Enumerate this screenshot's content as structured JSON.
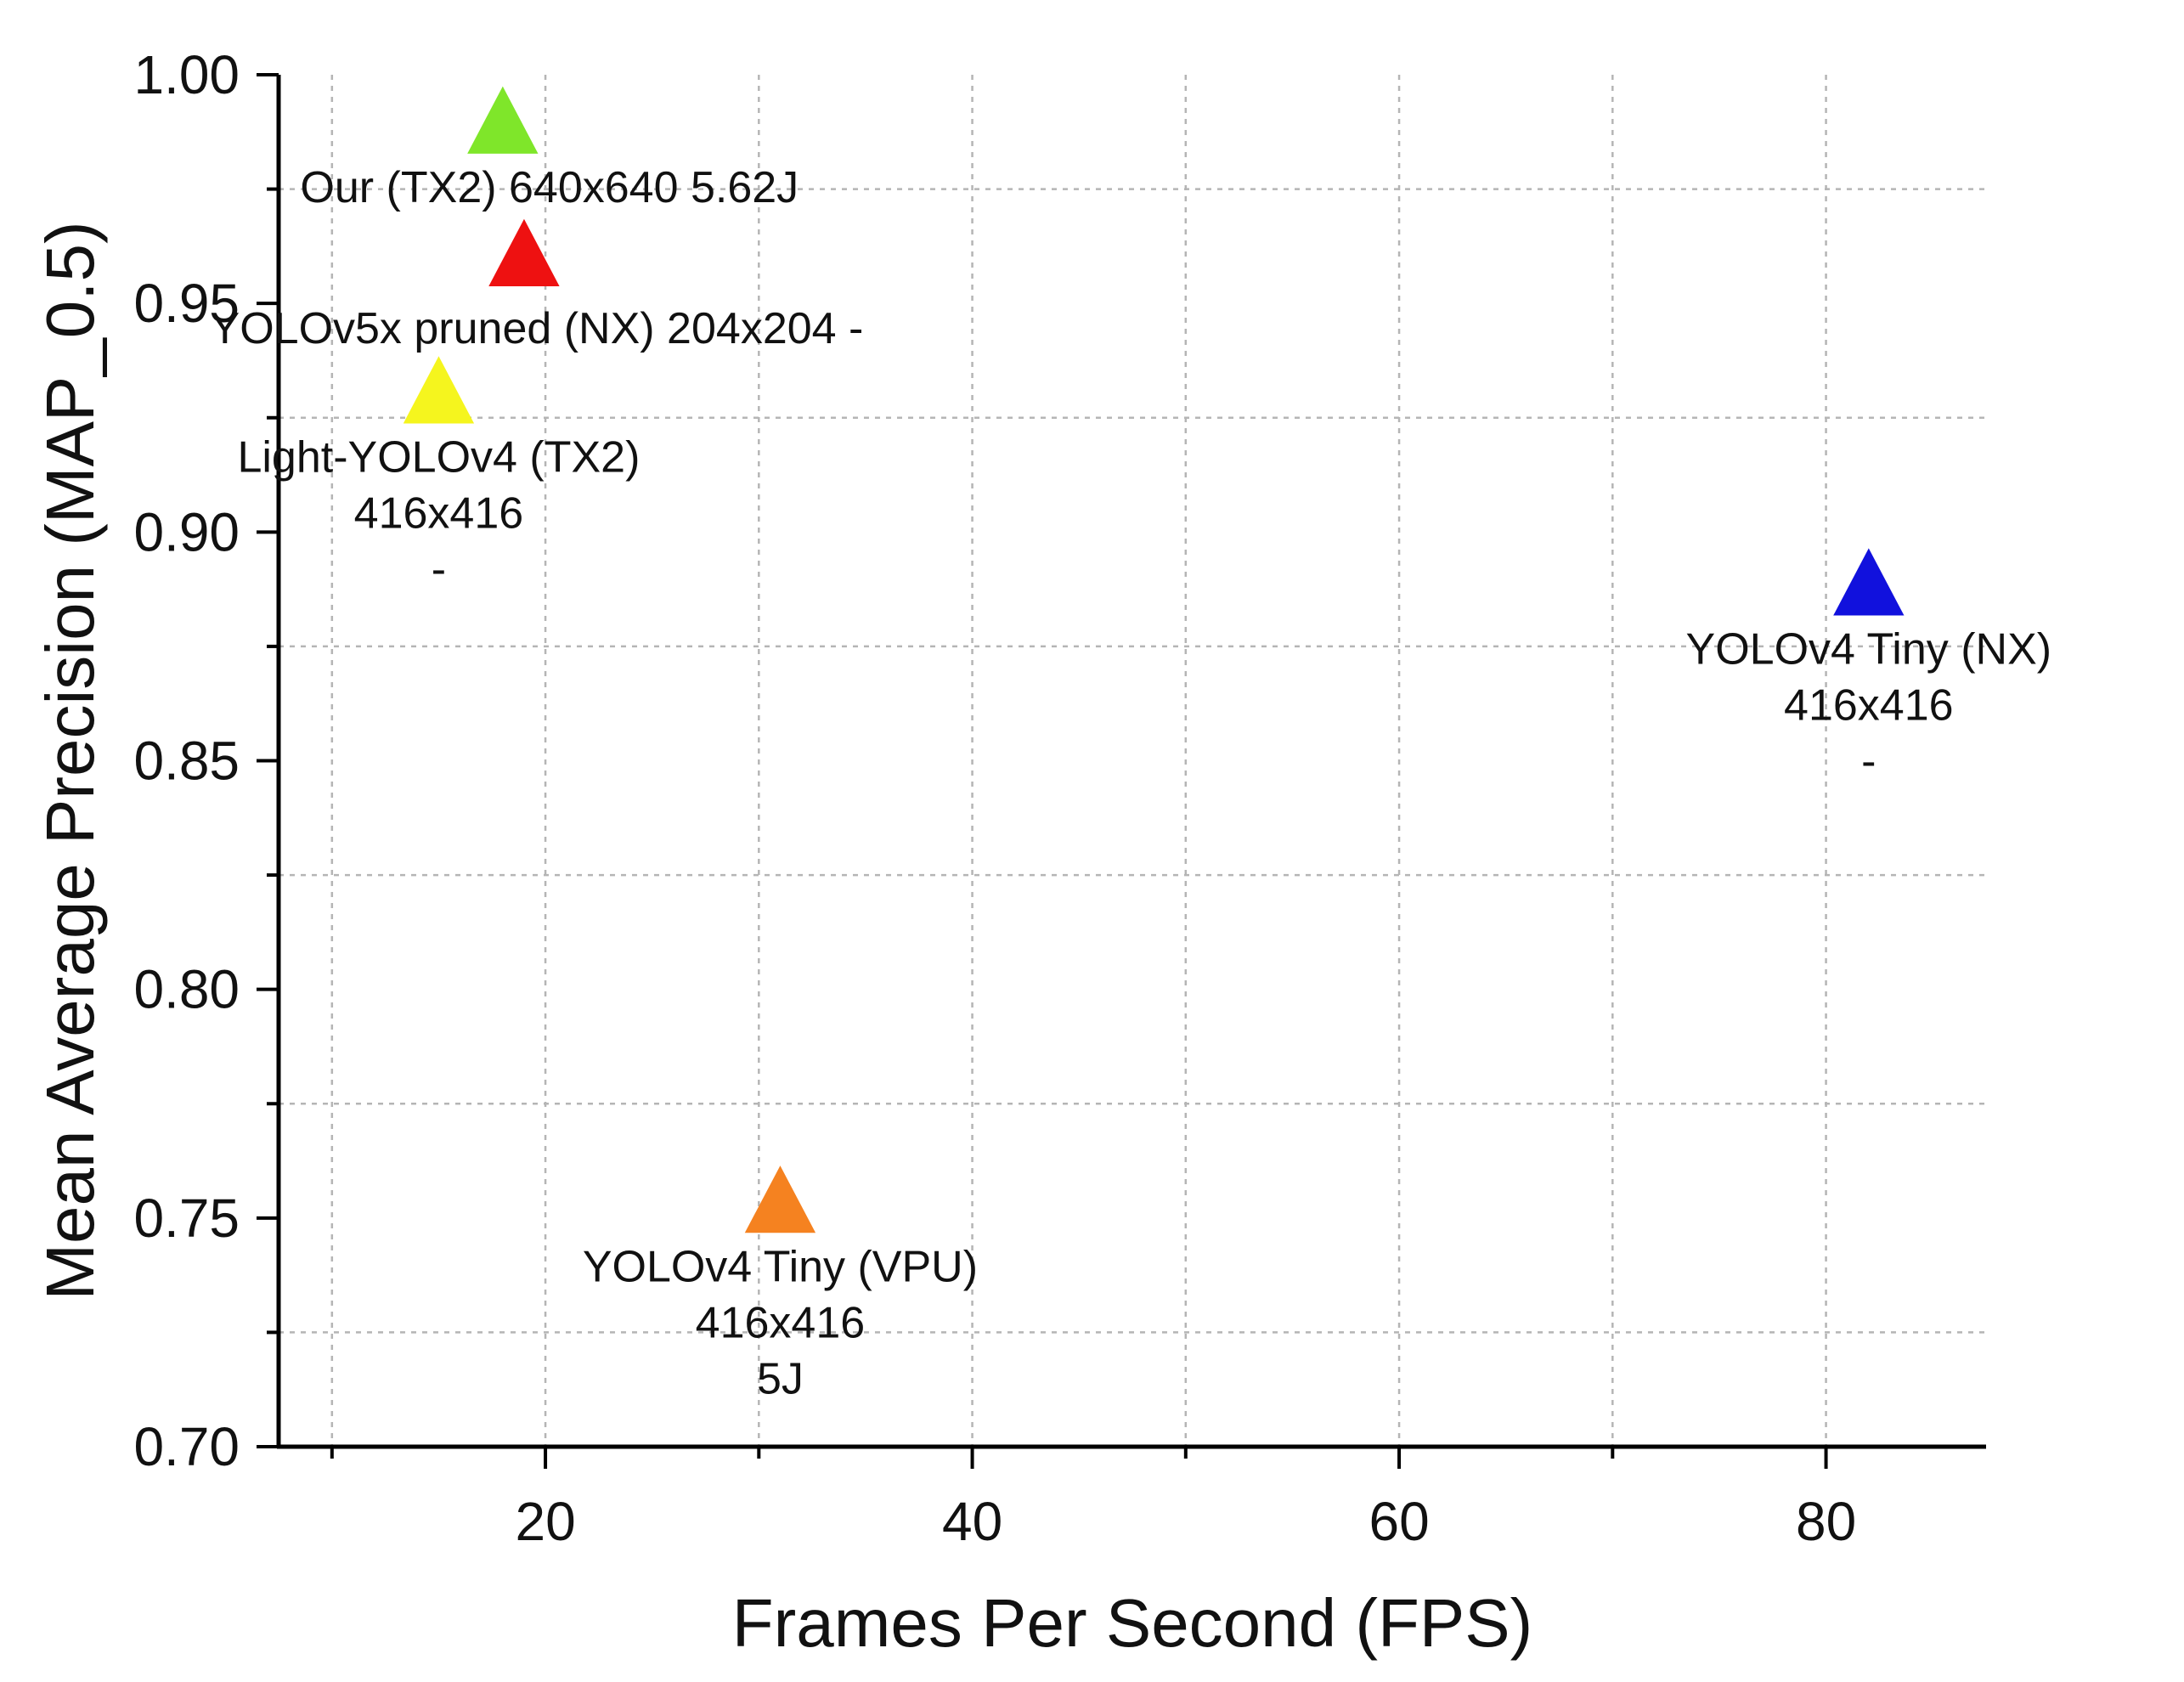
{
  "chart_data": {
    "type": "scatter",
    "marker": "triangle",
    "xlabel": "Frames Per Second (FPS)",
    "ylabel": "Mean Average Precision (MAP_0.5)",
    "xlim": [
      7.5,
      87.5
    ],
    "ylim": [
      0.7,
      1.0
    ],
    "xticks": [
      20,
      40,
      60,
      80
    ],
    "xtick_labels": [
      "20",
      "40",
      "60",
      "80"
    ],
    "xminor": [
      10,
      30,
      50,
      70
    ],
    "yticks": [
      0.7,
      0.75,
      0.8,
      0.85,
      0.9,
      0.95,
      1.0
    ],
    "ytick_labels": [
      "0.70",
      "0.75",
      "0.80",
      "0.85",
      "0.90",
      "0.95",
      "1.00"
    ],
    "yminor": [
      0.725,
      0.775,
      0.825,
      0.875,
      0.925,
      0.975
    ],
    "grid": true,
    "points": [
      {
        "name": "Our (TX2)",
        "x": 18,
        "y": 0.99,
        "color": "#7fe62a",
        "label_lines": [
          "Our (TX2) 640x640   5.62J"
        ]
      },
      {
        "name": "YOLOv5x pruned (NX)",
        "x": 19,
        "y": 0.961,
        "color": "#ee1111",
        "label_lines": [
          "YOLOv5x pruned (NX) 204x204 -"
        ]
      },
      {
        "name": "Light-YOLOv4 (TX2)",
        "x": 15,
        "y": 0.931,
        "color": "#f5f51e",
        "label_lines": [
          "Light-YOLOv4 (TX2)",
          "416x416",
          "-"
        ]
      },
      {
        "name": "YOLOv4 Tiny (NX)",
        "x": 82,
        "y": 0.889,
        "color": "#1111dd",
        "label_lines": [
          "YOLOv4 Tiny (NX)",
          "416x416",
          "-"
        ]
      },
      {
        "name": "YOLOv4 Tiny (VPU)",
        "x": 31,
        "y": 0.754,
        "color": "#f58220",
        "label_lines": [
          "YOLOv4 Tiny (VPU)",
          "416x416",
          "5J"
        ]
      }
    ]
  }
}
